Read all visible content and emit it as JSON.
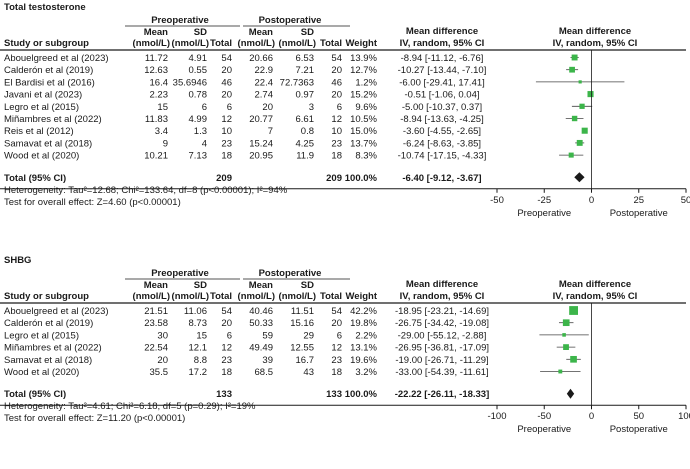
{
  "chart_data": [
    {
      "type": "forest",
      "title": "Total testosterone",
      "header": {
        "preop": "Preoperative",
        "postop": "Postoperative",
        "mean": "Mean",
        "sd": "SD",
        "total": "Total",
        "unit": "(nmol/L)",
        "study": "Study or subgroup",
        "weight": "Weight",
        "md": "Mean difference",
        "method": "IV, random, 95% CI"
      },
      "studies": [
        {
          "name": "Abouelgreed et al (2023)",
          "pre_mean": "11.72",
          "pre_sd": "4.91",
          "pre_n": "54",
          "post_mean": "20.66",
          "post_sd": "6.53",
          "post_n": "54",
          "weight": "13.9%",
          "ci_text": "-8.94  [-11.12, -6.76]",
          "md": -8.94,
          "lo": -11.12,
          "hi": -6.76,
          "w": 13.9
        },
        {
          "name": "Calderón et al (2019)",
          "pre_mean": "12.63",
          "pre_sd": "0.55",
          "pre_n": "20",
          "post_mean": "22.9",
          "post_sd": "7.21",
          "post_n": "20",
          "weight": "12.7%",
          "ci_text": "-10.27  [-13.44, -7.10]",
          "md": -10.27,
          "lo": -13.44,
          "hi": -7.1,
          "w": 12.7
        },
        {
          "name": "El Bardisi et al (2016)",
          "pre_mean": "16.4",
          "pre_sd": "35.6946",
          "pre_n": "46",
          "post_mean": "22.4",
          "post_sd": "72.7363",
          "post_n": "46",
          "weight": "1.2%",
          "ci_text": "-6.00  [-29.41, 17.41]",
          "md": -6.0,
          "lo": -29.41,
          "hi": 17.41,
          "w": 1.2
        },
        {
          "name": "Javani et al (2023)",
          "pre_mean": "2.23",
          "pre_sd": "0.78",
          "pre_n": "20",
          "post_mean": "2.74",
          "post_sd": "0.97",
          "post_n": "20",
          "weight": "15.2%",
          "ci_text": "-0.51  [-1.06, 0.04]",
          "md": -0.51,
          "lo": -1.06,
          "hi": 0.04,
          "w": 15.2
        },
        {
          "name": "Legro et al (2015)",
          "pre_mean": "15",
          "pre_sd": "6",
          "pre_n": "6",
          "post_mean": "20",
          "post_sd": "3",
          "post_n": "6",
          "weight": "9.6%",
          "ci_text": "-5.00  [-10.37, 0.37]",
          "md": -5.0,
          "lo": -10.37,
          "hi": 0.37,
          "w": 9.6
        },
        {
          "name": "Miñambres et al (2022)",
          "pre_mean": "11.83",
          "pre_sd": "4.99",
          "pre_n": "12",
          "post_mean": "20.77",
          "post_sd": "6.61",
          "post_n": "12",
          "weight": "10.5%",
          "ci_text": "-8.94  [-13.63, -4.25]",
          "md": -8.94,
          "lo": -13.63,
          "hi": -4.25,
          "w": 10.5
        },
        {
          "name": "Reis et al (2012)",
          "pre_mean": "3.4",
          "pre_sd": "1.3",
          "pre_n": "10",
          "post_mean": "7",
          "post_sd": "0.8",
          "post_n": "10",
          "weight": "15.0%",
          "ci_text": "-3.60  [-4.55, -2.65]",
          "md": -3.6,
          "lo": -4.55,
          "hi": -2.65,
          "w": 15.0
        },
        {
          "name": "Samavat et al (2018)",
          "pre_mean": "9",
          "pre_sd": "4",
          "pre_n": "23",
          "post_mean": "15.24",
          "post_sd": "4.25",
          "post_n": "23",
          "weight": "13.7%",
          "ci_text": "-6.24  [-8.63, -3.85]",
          "md": -6.24,
          "lo": -8.63,
          "hi": -3.85,
          "w": 13.7
        },
        {
          "name": "Wood et al (2020)",
          "pre_mean": "10.21",
          "pre_sd": "7.13",
          "pre_n": "18",
          "post_mean": "20.95",
          "post_sd": "11.9",
          "post_n": "18",
          "weight": "8.3%",
          "ci_text": "-10.74  [-17.15, -4.33]",
          "md": -10.74,
          "lo": -17.15,
          "hi": -4.33,
          "w": 8.3
        }
      ],
      "total": {
        "label": "Total (95% CI)",
        "pre_n": "209",
        "post_n": "209",
        "weight": "100.0%",
        "ci_text": "-6.40  [-9.12, -3.67]",
        "md": -6.4,
        "lo": -9.12,
        "hi": -3.67
      },
      "heterogeneity": "Heterogeneity: Tau²=12.68; Chi²=133.64, df=8 (p<0.00001); I²=94%",
      "overall_effect": "Test for overall effect: Z=4.60 (p<0.00001)",
      "axis": {
        "min": -50,
        "max": 50,
        "ticks": [
          -50,
          -25,
          0,
          25,
          50
        ],
        "tick_labels": [
          "-50",
          "-25",
          "0",
          "25",
          "50"
        ],
        "left_label": "Preoperative",
        "right_label": "Postoperative"
      }
    },
    {
      "type": "forest",
      "title": "SHBG",
      "header": {
        "preop": "Preoperative",
        "postop": "Postoperative",
        "mean": "Mean",
        "sd": "SD",
        "total": "Total",
        "unit": "(nmol/L)",
        "study": "Study or subgroup",
        "weight": "Weight",
        "md": "Mean difference",
        "method": "IV, random, 95% CI"
      },
      "studies": [
        {
          "name": "Abouelgreed et al (2023)",
          "pre_mean": "21.51",
          "pre_sd": "11.06",
          "pre_n": "54",
          "post_mean": "40.46",
          "post_sd": "11.51",
          "post_n": "54",
          "weight": "42.2%",
          "ci_text": "-18.95  [-23.21, -14.69]",
          "md": -18.95,
          "lo": -23.21,
          "hi": -14.69,
          "w": 42.2
        },
        {
          "name": "Calderón et al (2019)",
          "pre_mean": "23.58",
          "pre_sd": "8.73",
          "pre_n": "20",
          "post_mean": "50.33",
          "post_sd": "15.16",
          "post_n": "20",
          "weight": "19.8%",
          "ci_text": "-26.75  [-34.42, -19.08]",
          "md": -26.75,
          "lo": -34.42,
          "hi": -19.08,
          "w": 19.8
        },
        {
          "name": "Legro et al (2015)",
          "pre_mean": "30",
          "pre_sd": "15",
          "pre_n": "6",
          "post_mean": "59",
          "post_sd": "29",
          "post_n": "6",
          "weight": "2.2%",
          "ci_text": "-29.00  [-55.12, -2.88]",
          "md": -29.0,
          "lo": -55.12,
          "hi": -2.88,
          "w": 2.2
        },
        {
          "name": "Miñambres et al (2022)",
          "pre_mean": "22.54",
          "pre_sd": "12.1",
          "pre_n": "12",
          "post_mean": "49.49",
          "post_sd": "12.55",
          "post_n": "12",
          "weight": "13.1%",
          "ci_text": "-26.95  [-36.81, -17.09]",
          "md": -26.95,
          "lo": -36.81,
          "hi": -17.09,
          "w": 13.1
        },
        {
          "name": "Samavat et al (2018)",
          "pre_mean": "20",
          "pre_sd": "8.8",
          "pre_n": "23",
          "post_mean": "39",
          "post_sd": "16.7",
          "post_n": "23",
          "weight": "19.6%",
          "ci_text": "-19.00  [-26.71, -11.29]",
          "md": -19.0,
          "lo": -26.71,
          "hi": -11.29,
          "w": 19.6
        },
        {
          "name": "Wood et al (2020)",
          "pre_mean": "35.5",
          "pre_sd": "17.2",
          "pre_n": "18",
          "post_mean": "68.5",
          "post_sd": "43",
          "post_n": "18",
          "weight": "3.2%",
          "ci_text": "-33.00  [-54.39, -11.61]",
          "md": -33.0,
          "lo": -54.39,
          "hi": -11.61,
          "w": 3.2
        }
      ],
      "total": {
        "label": "Total (95% CI)",
        "pre_n": "133",
        "post_n": "133",
        "weight": "100.0%",
        "ci_text": "-22.22  [-26.11, -18.33]",
        "md": -22.22,
        "lo": -26.11,
        "hi": -18.33
      },
      "heterogeneity": "Heterogeneity: Tau²=4.61; Chi²=6.18, df=5 (p=0.29); I²=19%",
      "overall_effect": "Test for overall effect: Z=11.20 (p<0.00001)",
      "axis": {
        "min": -100,
        "max": 100,
        "ticks": [
          -100,
          -50,
          0,
          50,
          100
        ],
        "tick_labels": [
          "-100",
          "-50",
          "0",
          "50",
          "100"
        ],
        "left_label": "Preoperative",
        "right_label": "Postoperative"
      }
    }
  ],
  "colors": {
    "square": "#3cb54a",
    "diamond": "#1a1a1a",
    "line": "#444444"
  }
}
